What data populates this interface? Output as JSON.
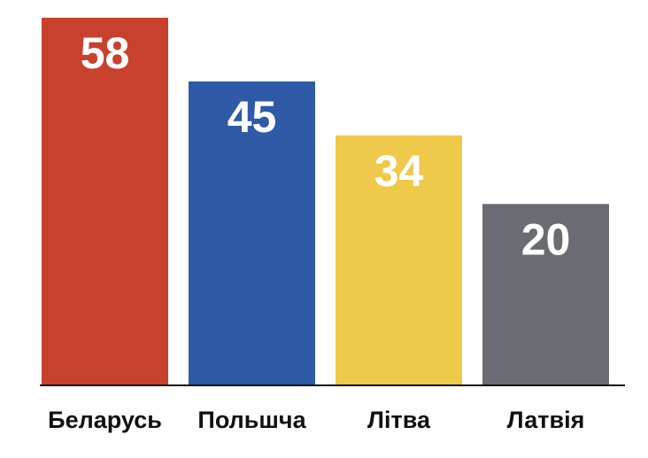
{
  "chart_data": {
    "type": "bar",
    "categories": [
      "Беларусь",
      "Польшча",
      "Літва",
      "Латвія"
    ],
    "values": [
      58,
      45,
      34,
      20
    ],
    "colors": [
      "#c8412f",
      "#2e5aa6",
      "#eec94a",
      "#6b6b73"
    ],
    "ylim": [
      -17,
      58
    ]
  }
}
